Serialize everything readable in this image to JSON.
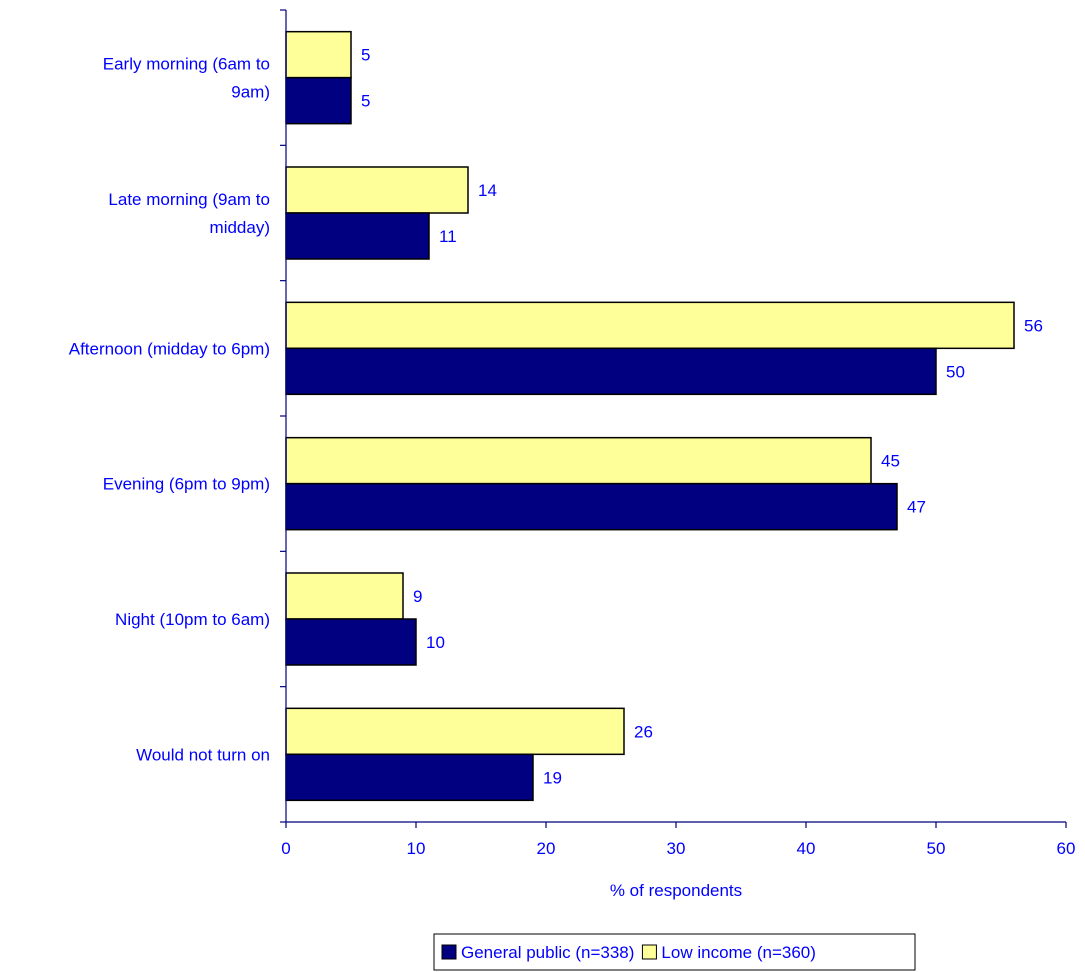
{
  "chart_data": {
    "type": "bar",
    "orientation": "horizontal",
    "categories": [
      [
        "Early morning (6am to",
        "9am)"
      ],
      [
        "Late morning (9am to",
        "midday)"
      ],
      [
        "Afternoon (midday to 6pm)"
      ],
      [
        "Evening (6pm to 9pm)"
      ],
      [
        "Night (10pm to 6am)"
      ],
      [
        "Would not turn on"
      ]
    ],
    "series": [
      {
        "name": "Low income (n=360)",
        "color": "#ffff99",
        "values": [
          5,
          14,
          56,
          45,
          9,
          26
        ]
      },
      {
        "name": "General public (n=338)",
        "color": "#000080",
        "values": [
          5,
          11,
          50,
          47,
          10,
          19
        ]
      }
    ],
    "legend_order": [
      1,
      0
    ],
    "legend_position": "bottom",
    "xlabel": "% of respondents",
    "xlim": [
      0,
      60
    ],
    "xticks": [
      "0",
      "10",
      "20",
      "30",
      "40",
      "50",
      "60"
    ],
    "grid": false
  }
}
